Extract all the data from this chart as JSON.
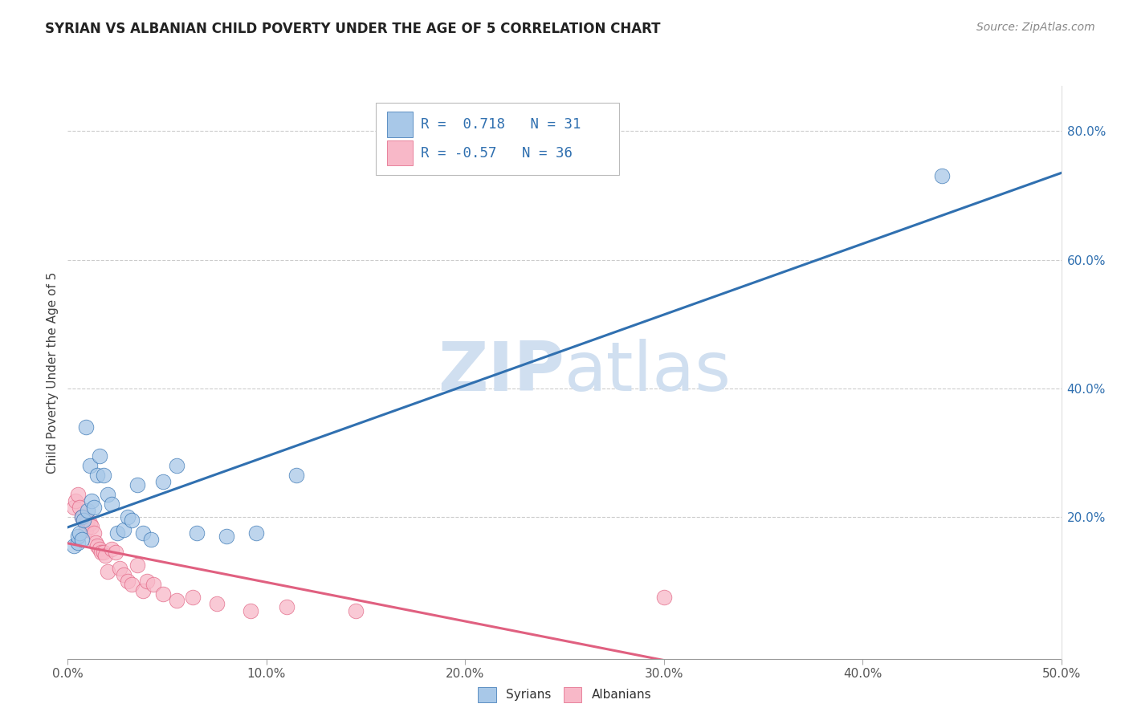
{
  "title": "SYRIAN VS ALBANIAN CHILD POVERTY UNDER THE AGE OF 5 CORRELATION CHART",
  "source": "Source: ZipAtlas.com",
  "ylabel": "Child Poverty Under the Age of 5",
  "xlabel_ticks": [
    0.0,
    0.1,
    0.2,
    0.3,
    0.4,
    0.5
  ],
  "xlabel_labels": [
    "0.0%",
    "10.0%",
    "20.0%",
    "30.0%",
    "40.0%",
    "50.0%"
  ],
  "ylabel_ticks": [
    0.0,
    0.2,
    0.4,
    0.6,
    0.8
  ],
  "ylabel_labels": [
    "",
    "20.0%",
    "40.0%",
    "60.0%",
    "80.0%"
  ],
  "xlim": [
    0.0,
    0.5
  ],
  "ylim": [
    -0.02,
    0.87
  ],
  "syrians_R": 0.718,
  "syrians_N": 31,
  "albanians_R": -0.57,
  "albanians_N": 36,
  "syrians_color": "#a8c8e8",
  "albanians_color": "#f8b8c8",
  "syrians_line_color": "#3070b0",
  "albanians_line_color": "#e06080",
  "watermark_color": "#d0dff0",
  "syrians_x": [
    0.003,
    0.005,
    0.005,
    0.006,
    0.007,
    0.007,
    0.008,
    0.009,
    0.01,
    0.011,
    0.012,
    0.013,
    0.015,
    0.016,
    0.018,
    0.02,
    0.022,
    0.025,
    0.028,
    0.03,
    0.032,
    0.035,
    0.038,
    0.042,
    0.048,
    0.055,
    0.065,
    0.08,
    0.095,
    0.115,
    0.44
  ],
  "syrians_y": [
    0.155,
    0.16,
    0.17,
    0.175,
    0.165,
    0.2,
    0.195,
    0.34,
    0.21,
    0.28,
    0.225,
    0.215,
    0.265,
    0.295,
    0.265,
    0.235,
    0.22,
    0.175,
    0.18,
    0.2,
    0.195,
    0.25,
    0.175,
    0.165,
    0.255,
    0.28,
    0.175,
    0.17,
    0.175,
    0.265,
    0.73
  ],
  "albanians_x": [
    0.003,
    0.004,
    0.005,
    0.006,
    0.007,
    0.008,
    0.009,
    0.01,
    0.011,
    0.012,
    0.013,
    0.014,
    0.015,
    0.016,
    0.017,
    0.018,
    0.019,
    0.02,
    0.022,
    0.024,
    0.026,
    0.028,
    0.03,
    0.032,
    0.035,
    0.038,
    0.04,
    0.043,
    0.048,
    0.055,
    0.063,
    0.075,
    0.092,
    0.11,
    0.145,
    0.3
  ],
  "albanians_y": [
    0.215,
    0.225,
    0.235,
    0.215,
    0.2,
    0.195,
    0.18,
    0.195,
    0.19,
    0.185,
    0.175,
    0.16,
    0.155,
    0.15,
    0.145,
    0.145,
    0.14,
    0.115,
    0.15,
    0.145,
    0.12,
    0.11,
    0.1,
    0.095,
    0.125,
    0.085,
    0.1,
    0.095,
    0.08,
    0.07,
    0.075,
    0.065,
    0.055,
    0.06,
    0.055,
    0.075
  ]
}
